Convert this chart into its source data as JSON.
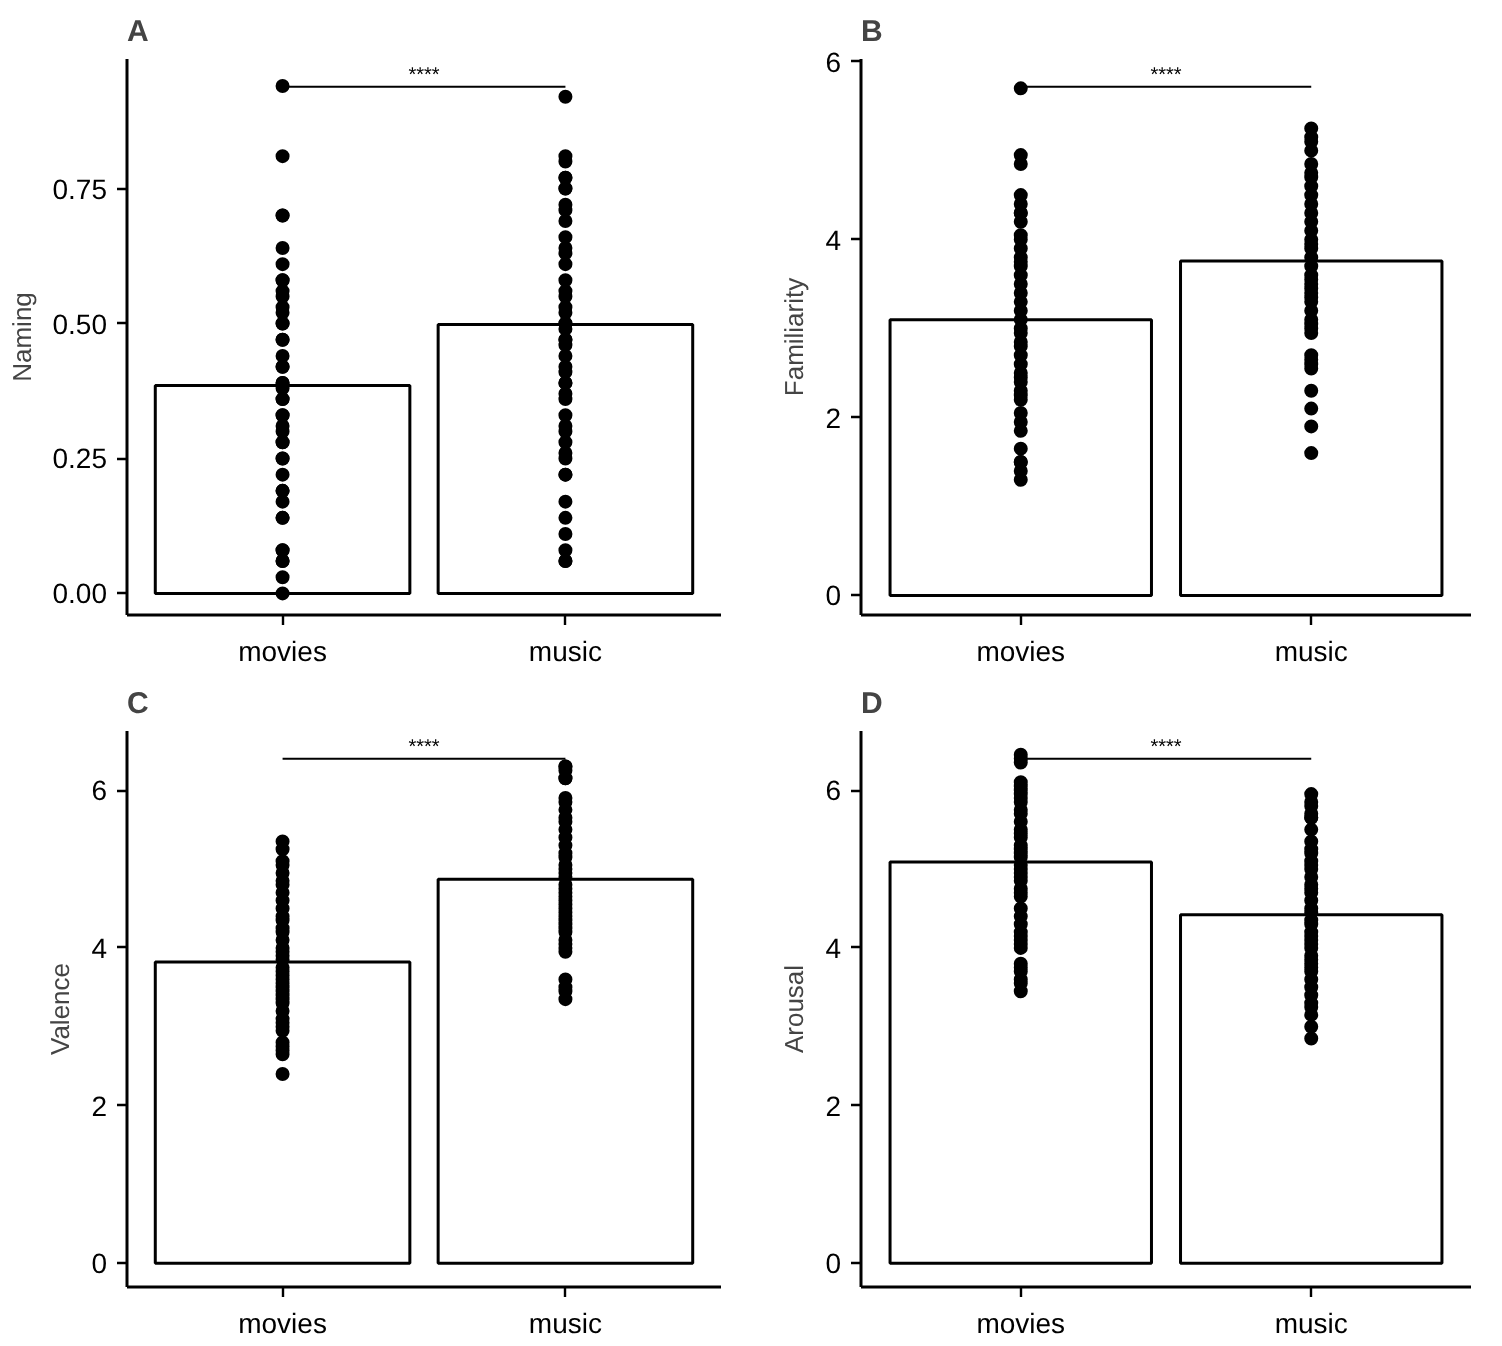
{
  "chart_data": [
    {
      "type": "bar",
      "title": "A",
      "ylabel": "Naming",
      "categories": [
        "movies",
        "music"
      ],
      "ylim": [
        -0.04,
        0.99
      ],
      "yticks": [
        {
          "value": 0,
          "label": "0.00"
        },
        {
          "value": 0.25,
          "label": "0.25"
        },
        {
          "value": 0.5,
          "label": "0.50"
        },
        {
          "value": 0.75,
          "label": "0.75"
        }
      ],
      "grid": false,
      "marker": "circle",
      "annotations": [
        "****"
      ],
      "series": [
        {
          "color": "#ffffff",
          "values": [
            0.385,
            0.498
          ],
          "errors": [
            0.012,
            0.012
          ]
        },
        {
          "type": "scatter",
          "color": "#000000",
          "x": [
            "movies",
            "movies",
            "movies",
            "movies",
            "movies",
            "movies",
            "movies",
            "movies",
            "movies",
            "movies",
            "movies",
            "movies",
            "movies",
            "movies",
            "movies",
            "movies",
            "movies",
            "movies",
            "movies",
            "movies",
            "movies",
            "movies",
            "movies",
            "movies",
            "movies",
            "movies",
            "movies",
            "movies",
            "movies",
            "movies",
            "movies",
            "movies",
            "movies",
            "movies",
            "movies",
            "movies",
            "movies",
            "movies",
            "movies",
            "movies",
            "movies",
            "movies",
            "movies",
            "movies",
            "music",
            "music",
            "music",
            "music",
            "music",
            "music",
            "music",
            "music",
            "music",
            "music",
            "music",
            "music",
            "music",
            "music",
            "music",
            "music",
            "music",
            "music",
            "music",
            "music",
            "music",
            "music",
            "music",
            "music",
            "music",
            "music",
            "music",
            "music",
            "music",
            "music",
            "music",
            "music",
            "music",
            "music",
            "music",
            "music",
            "music",
            "music",
            "music",
            "music",
            "music",
            "music",
            "music",
            "music",
            "music",
            "music"
          ],
          "values": [
            0.94,
            0.81,
            0.7,
            0.7,
            0.64,
            0.61,
            0.58,
            0.58,
            0.56,
            0.55,
            0.53,
            0.52,
            0.5,
            0.5,
            0.47,
            0.47,
            0.44,
            0.42,
            0.42,
            0.39,
            0.39,
            0.38,
            0.36,
            0.36,
            0.33,
            0.33,
            0.31,
            0.3,
            0.28,
            0.28,
            0.25,
            0.25,
            0.22,
            0.19,
            0.19,
            0.17,
            0.14,
            0.14,
            0.08,
            0.08,
            0.06,
            0.06,
            0.03,
            0.0,
            0.92,
            0.81,
            0.8,
            0.77,
            0.77,
            0.75,
            0.75,
            0.72,
            0.71,
            0.69,
            0.66,
            0.64,
            0.63,
            0.61,
            0.58,
            0.56,
            0.55,
            0.53,
            0.52,
            0.5,
            0.5,
            0.49,
            0.47,
            0.47,
            0.46,
            0.44,
            0.42,
            0.41,
            0.39,
            0.39,
            0.37,
            0.36,
            0.33,
            0.31,
            0.3,
            0.28,
            0.26,
            0.25,
            0.22,
            0.22,
            0.17,
            0.14,
            0.11,
            0.08,
            0.06,
            0.06
          ]
        }
      ]
    },
    {
      "type": "bar",
      "title": "B",
      "ylabel": "Familiarity",
      "categories": [
        "movies",
        "music"
      ],
      "ylim": [
        -0.22,
        6.03
      ],
      "yticks": [
        0,
        2,
        4,
        6
      ],
      "grid": false,
      "marker": "circle",
      "annotations": [
        "****"
      ],
      "series": [
        {
          "color": "#ffffff",
          "values": [
            3.1,
            3.76
          ],
          "errors": [
            0.07,
            0.07
          ]
        },
        {
          "type": "scatter",
          "color": "#000000",
          "x": [
            "movies",
            "movies",
            "movies",
            "movies",
            "movies",
            "movies",
            "movies",
            "movies",
            "movies",
            "movies",
            "movies",
            "movies",
            "movies",
            "movies",
            "movies",
            "movies",
            "movies",
            "movies",
            "movies",
            "movies",
            "movies",
            "movies",
            "movies",
            "movies",
            "movies",
            "movies",
            "movies",
            "movies",
            "movies",
            "movies",
            "movies",
            "movies",
            "movies",
            "movies",
            "movies",
            "movies",
            "movies",
            "movies",
            "movies",
            "movies",
            "music",
            "music",
            "music",
            "music",
            "music",
            "music",
            "music",
            "music",
            "music",
            "music",
            "music",
            "music",
            "music",
            "music",
            "music",
            "music",
            "music",
            "music",
            "music",
            "music",
            "music",
            "music",
            "music",
            "music",
            "music",
            "music",
            "music",
            "music",
            "music",
            "music",
            "music",
            "music",
            "music",
            "music",
            "music",
            "music",
            "music",
            "music"
          ],
          "values": [
            5.7,
            4.95,
            4.85,
            4.5,
            4.4,
            4.3,
            4.3,
            4.2,
            4.05,
            4.0,
            3.9,
            3.8,
            3.75,
            3.7,
            3.6,
            3.5,
            3.4,
            3.3,
            3.2,
            3.1,
            3.0,
            2.95,
            2.85,
            2.8,
            2.7,
            2.6,
            2.5,
            2.45,
            2.4,
            2.3,
            2.25,
            2.2,
            2.05,
            1.95,
            1.85,
            1.65,
            1.5,
            1.5,
            1.4,
            1.3,
            5.25,
            5.15,
            5.1,
            5.0,
            4.85,
            4.75,
            4.7,
            4.6,
            4.5,
            4.4,
            4.3,
            4.2,
            4.1,
            4.0,
            3.95,
            3.9,
            3.8,
            3.7,
            3.6,
            3.55,
            3.5,
            3.45,
            3.4,
            3.35,
            3.3,
            3.2,
            3.1,
            3.05,
            3.0,
            2.95,
            2.7,
            2.65,
            2.6,
            2.55,
            2.3,
            2.1,
            1.9,
            1.6
          ]
        }
      ]
    },
    {
      "type": "bar",
      "title": "C",
      "ylabel": "Valence",
      "categories": [
        "movies",
        "music"
      ],
      "ylim": [
        -0.3,
        6.75
      ],
      "yticks": [
        0,
        2,
        4,
        6
      ],
      "grid": false,
      "marker": "circle",
      "annotations": [
        "****"
      ],
      "series": [
        {
          "color": "#ffffff",
          "values": [
            3.82,
            4.87
          ],
          "errors": [
            0.06,
            0.06
          ]
        },
        {
          "type": "scatter",
          "color": "#000000",
          "x": [
            "movies",
            "movies",
            "movies",
            "movies",
            "movies",
            "movies",
            "movies",
            "movies",
            "movies",
            "movies",
            "movies",
            "movies",
            "movies",
            "movies",
            "movies",
            "movies",
            "movies",
            "movies",
            "movies",
            "movies",
            "movies",
            "movies",
            "movies",
            "movies",
            "movies",
            "movies",
            "movies",
            "movies",
            "movies",
            "movies",
            "movies",
            "movies",
            "movies",
            "movies",
            "movies",
            "movies",
            "movies",
            "movies",
            "movies",
            "music",
            "music",
            "music",
            "music",
            "music",
            "music",
            "music",
            "music",
            "music",
            "music",
            "music",
            "music",
            "music",
            "music",
            "music",
            "music",
            "music",
            "music",
            "music",
            "music",
            "music",
            "music",
            "music",
            "music",
            "music",
            "music",
            "music",
            "music",
            "music",
            "music",
            "music",
            "music",
            "music",
            "music",
            "music",
            "music",
            "music",
            "music",
            "music",
            "music"
          ],
          "values": [
            5.35,
            5.25,
            5.1,
            5.05,
            4.95,
            4.85,
            4.8,
            4.7,
            4.6,
            4.5,
            4.4,
            4.35,
            4.25,
            4.2,
            4.1,
            4.0,
            3.95,
            3.9,
            3.85,
            3.75,
            3.7,
            3.65,
            3.6,
            3.55,
            3.5,
            3.45,
            3.4,
            3.35,
            3.3,
            3.2,
            3.1,
            3.05,
            3.0,
            2.95,
            2.8,
            2.75,
            2.7,
            2.65,
            2.4,
            6.3,
            6.3,
            6.25,
            6.15,
            6.15,
            5.9,
            5.85,
            5.75,
            5.65,
            5.6,
            5.5,
            5.4,
            5.3,
            5.2,
            5.15,
            5.05,
            5.0,
            4.95,
            4.9,
            4.8,
            4.75,
            4.7,
            4.65,
            4.6,
            4.55,
            4.5,
            4.45,
            4.4,
            4.35,
            4.3,
            4.25,
            4.2,
            4.1,
            4.05,
            4.0,
            3.95,
            3.6,
            3.5,
            3.45,
            3.35
          ]
        }
      ]
    },
    {
      "type": "bar",
      "title": "D",
      "ylabel": "Arousal",
      "categories": [
        "movies",
        "music"
      ],
      "ylim": [
        -0.3,
        6.75
      ],
      "yticks": [
        0,
        2,
        4,
        6
      ],
      "grid": false,
      "marker": "circle",
      "annotations": [
        "****"
      ],
      "series": [
        {
          "color": "#ffffff",
          "values": [
            5.09,
            4.42
          ],
          "errors": [
            0.06,
            0.06
          ]
        },
        {
          "type": "scatter",
          "color": "#000000",
          "x": [
            "movies",
            "movies",
            "movies",
            "movies",
            "movies",
            "movies",
            "movies",
            "movies",
            "movies",
            "movies",
            "movies",
            "movies",
            "movies",
            "movies",
            "movies",
            "movies",
            "movies",
            "movies",
            "movies",
            "movies",
            "movies",
            "movies",
            "movies",
            "movies",
            "movies",
            "movies",
            "movies",
            "movies",
            "movies",
            "movies",
            "movies",
            "movies",
            "movies",
            "movies",
            "movies",
            "movies",
            "movies",
            "movies",
            "movies",
            "movies",
            "movies",
            "music",
            "music",
            "music",
            "music",
            "music",
            "music",
            "music",
            "music",
            "music",
            "music",
            "music",
            "music",
            "music",
            "music",
            "music",
            "music",
            "music",
            "music",
            "music",
            "music",
            "music",
            "music",
            "music",
            "music",
            "music",
            "music",
            "music",
            "music",
            "music",
            "music",
            "music",
            "music",
            "music",
            "music",
            "music",
            "music",
            "music",
            "music",
            "music",
            "music"
          ],
          "values": [
            6.45,
            6.4,
            6.35,
            6.1,
            6.05,
            6.0,
            5.95,
            5.9,
            5.85,
            5.75,
            5.7,
            5.6,
            5.5,
            5.45,
            5.4,
            5.3,
            5.25,
            5.2,
            5.15,
            5.05,
            5.0,
            4.95,
            4.9,
            4.85,
            4.75,
            4.7,
            4.65,
            4.5,
            4.4,
            4.3,
            4.2,
            4.15,
            4.1,
            4.05,
            4.0,
            3.8,
            3.75,
            3.7,
            3.6,
            3.55,
            3.45,
            5.95,
            5.85,
            5.8,
            5.7,
            5.65,
            5.65,
            5.5,
            5.35,
            5.25,
            5.2,
            5.1,
            5.05,
            5.0,
            4.9,
            4.8,
            4.75,
            4.7,
            4.6,
            4.5,
            4.45,
            4.35,
            4.3,
            4.2,
            4.15,
            4.1,
            4.05,
            4.0,
            3.9,
            3.85,
            3.8,
            3.75,
            3.7,
            3.6,
            3.5,
            3.4,
            3.3,
            3.25,
            3.15,
            3.0,
            2.85
          ]
        }
      ]
    }
  ]
}
